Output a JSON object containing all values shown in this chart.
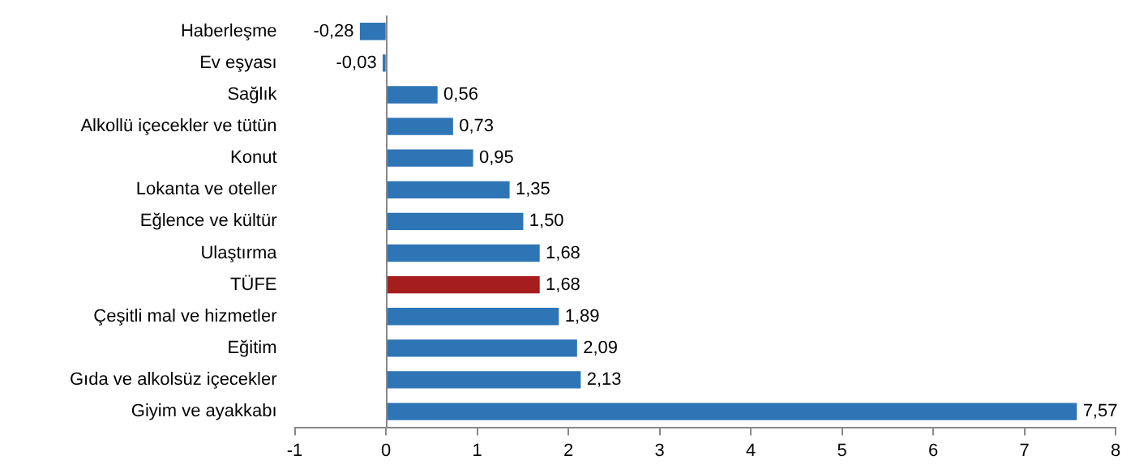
{
  "chart_data": {
    "type": "bar",
    "orientation": "horizontal",
    "categories": [
      "Haberleşme",
      "Ev eşyası",
      "Sağlık",
      "Alkollü içecekler ve tütün",
      "Konut",
      "Lokanta ve oteller",
      "Eğlence ve kültür",
      "Ulaştırma",
      "TÜFE",
      "Çeşitli mal ve hizmetler",
      "Eğitim",
      "Gıda ve alkolsüz içecekler",
      "Giyim ve ayakkabı"
    ],
    "values": [
      -0.28,
      -0.03,
      0.56,
      0.73,
      0.95,
      1.35,
      1.5,
      1.68,
      1.68,
      1.89,
      2.09,
      2.13,
      7.57
    ],
    "value_labels": [
      "-0,28",
      "-0,03",
      "0,56",
      "0,73",
      "0,95",
      "1,35",
      "1,50",
      "1,68",
      "1,68",
      "1,89",
      "2,09",
      "2,13",
      "7,57"
    ],
    "colors": [
      "#2e75b6",
      "#2e75b6",
      "#2e75b6",
      "#2e75b6",
      "#2e75b6",
      "#2e75b6",
      "#2e75b6",
      "#2e75b6",
      "#a51d1d",
      "#2e75b6",
      "#2e75b6",
      "#2e75b6",
      "#2e75b6"
    ],
    "xlim": [
      -1,
      8
    ],
    "xticks": [
      -1,
      0,
      1,
      2,
      3,
      4,
      5,
      6,
      7,
      8
    ],
    "legend": false
  }
}
